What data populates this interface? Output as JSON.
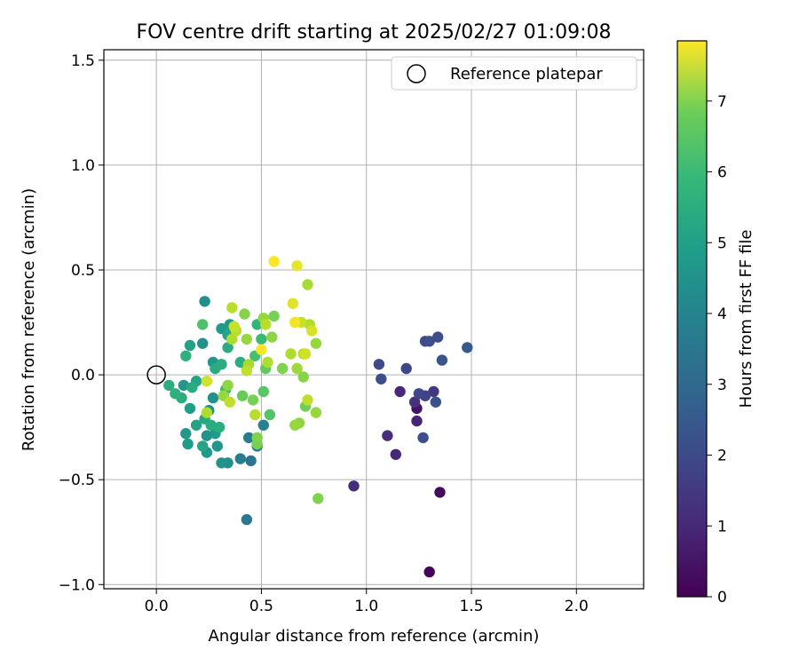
{
  "chart_data": {
    "type": "scatter",
    "title": "FOV centre drift starting at 2025/02/27 01:09:08",
    "xlabel": "Angular distance from reference (arcmin)",
    "ylabel": "Rotation from reference (arcmin)",
    "xlim": [
      -0.25,
      2.32
    ],
    "ylim": [
      -1.02,
      1.55
    ],
    "xticks": [
      "0.0",
      "0.5",
      "1.0",
      "1.5",
      "2.0"
    ],
    "yticks": [
      "−1.0",
      "−0.5",
      "0.0",
      "0.5",
      "1.0",
      "1.5"
    ],
    "grid": true,
    "legend": {
      "location": "upper right",
      "label": "Reference platepar"
    },
    "reference_point": {
      "x": 0.0,
      "y": 0.0
    },
    "colorbar": {
      "label": "Hours from first FF file",
      "colormap": "viridis",
      "range": [
        0,
        7.85
      ],
      "ticks": [
        "0",
        "1",
        "2",
        "3",
        "4",
        "5",
        "6",
        "7"
      ]
    },
    "points": [
      {
        "x": 1.3,
        "y": -0.94,
        "t": 0.1
      },
      {
        "x": 1.35,
        "y": -0.56,
        "t": 0.2
      },
      {
        "x": 1.24,
        "y": -0.16,
        "t": 0.4
      },
      {
        "x": 0.94,
        "y": -0.53,
        "t": 1.0
      },
      {
        "x": 1.14,
        "y": -0.38,
        "t": 0.9
      },
      {
        "x": 1.1,
        "y": -0.29,
        "t": 1.0
      },
      {
        "x": 1.24,
        "y": -0.22,
        "t": 0.8
      },
      {
        "x": 1.16,
        "y": -0.08,
        "t": 0.9
      },
      {
        "x": 1.23,
        "y": -0.13,
        "t": 1.1
      },
      {
        "x": 1.32,
        "y": -0.08,
        "t": 1.3
      },
      {
        "x": 1.28,
        "y": -0.1,
        "t": 1.6
      },
      {
        "x": 1.25,
        "y": -0.09,
        "t": 1.7
      },
      {
        "x": 1.27,
        "y": -0.3,
        "t": 1.9
      },
      {
        "x": 1.33,
        "y": -0.13,
        "t": 2.0
      },
      {
        "x": 1.07,
        "y": -0.02,
        "t": 1.9
      },
      {
        "x": 1.06,
        "y": 0.05,
        "t": 1.8
      },
      {
        "x": 1.19,
        "y": 0.03,
        "t": 1.7
      },
      {
        "x": 1.28,
        "y": 0.16,
        "t": 1.8
      },
      {
        "x": 1.3,
        "y": 0.16,
        "t": 1.9
      },
      {
        "x": 1.34,
        "y": 0.18,
        "t": 1.9
      },
      {
        "x": 1.36,
        "y": 0.07,
        "t": 2.1
      },
      {
        "x": 1.48,
        "y": 0.13,
        "t": 2.2
      },
      {
        "x": 0.43,
        "y": -0.69,
        "t": 3.2
      },
      {
        "x": 0.45,
        "y": -0.41,
        "t": 3.1
      },
      {
        "x": 0.4,
        "y": -0.4,
        "t": 3.4
      },
      {
        "x": 0.48,
        "y": -0.34,
        "t": 3.1
      },
      {
        "x": 0.44,
        "y": -0.3,
        "t": 3.3
      },
      {
        "x": 0.51,
        "y": -0.24,
        "t": 3.5
      },
      {
        "x": 0.31,
        "y": -0.42,
        "t": 4.0
      },
      {
        "x": 0.34,
        "y": -0.42,
        "t": 3.9
      },
      {
        "x": 0.24,
        "y": -0.37,
        "t": 4.2
      },
      {
        "x": 0.22,
        "y": -0.34,
        "t": 4.6
      },
      {
        "x": 0.29,
        "y": -0.34,
        "t": 4.1
      },
      {
        "x": 0.15,
        "y": -0.33,
        "t": 4.3
      },
      {
        "x": 0.14,
        "y": -0.28,
        "t": 4.2
      },
      {
        "x": 0.24,
        "y": -0.29,
        "t": 4.0
      },
      {
        "x": 0.28,
        "y": -0.28,
        "t": 4.3
      },
      {
        "x": 0.19,
        "y": -0.24,
        "t": 4.5
      },
      {
        "x": 0.26,
        "y": -0.24,
        "t": 4.8
      },
      {
        "x": 0.3,
        "y": -0.25,
        "t": 4.9
      },
      {
        "x": 0.23,
        "y": -0.21,
        "t": 4.7
      },
      {
        "x": 0.25,
        "y": -0.17,
        "t": 3.8
      },
      {
        "x": 0.16,
        "y": -0.16,
        "t": 4.4
      },
      {
        "x": 0.27,
        "y": -0.11,
        "t": 4.0
      },
      {
        "x": 0.12,
        "y": -0.11,
        "t": 4.9
      },
      {
        "x": 0.09,
        "y": -0.09,
        "t": 5.0
      },
      {
        "x": 0.06,
        "y": -0.05,
        "t": 4.9
      },
      {
        "x": 0.13,
        "y": -0.05,
        "t": 4.1
      },
      {
        "x": 0.17,
        "y": -0.06,
        "t": 4.8
      },
      {
        "x": 0.19,
        "y": -0.03,
        "t": 4.6
      },
      {
        "x": 0.14,
        "y": 0.09,
        "t": 5.0
      },
      {
        "x": 0.16,
        "y": 0.14,
        "t": 4.5
      },
      {
        "x": 0.22,
        "y": 0.15,
        "t": 4.0
      },
      {
        "x": 0.22,
        "y": 0.24,
        "t": 5.6
      },
      {
        "x": 0.23,
        "y": 0.35,
        "t": 3.9
      },
      {
        "x": 0.27,
        "y": 0.06,
        "t": 4.1
      },
      {
        "x": 0.28,
        "y": 0.03,
        "t": 4.8
      },
      {
        "x": 0.31,
        "y": 0.05,
        "t": 4.9
      },
      {
        "x": 0.31,
        "y": 0.22,
        "t": 4.3
      },
      {
        "x": 0.35,
        "y": 0.24,
        "t": 4.2
      },
      {
        "x": 0.34,
        "y": 0.19,
        "t": 4.6
      },
      {
        "x": 0.34,
        "y": 0.13,
        "t": 4.9
      },
      {
        "x": 0.33,
        "y": -0.07,
        "t": 5.3
      },
      {
        "x": 0.34,
        "y": -0.05,
        "t": 6.5
      },
      {
        "x": 0.32,
        "y": -0.1,
        "t": 6.6
      },
      {
        "x": 0.35,
        "y": -0.13,
        "t": 7.1
      },
      {
        "x": 0.24,
        "y": -0.18,
        "t": 6.9
      },
      {
        "x": 0.24,
        "y": -0.03,
        "t": 7.3
      },
      {
        "x": 0.4,
        "y": 0.06,
        "t": 4.9
      },
      {
        "x": 0.43,
        "y": 0.04,
        "t": 5.2
      },
      {
        "x": 0.47,
        "y": 0.09,
        "t": 5.5
      },
      {
        "x": 0.48,
        "y": 0.24,
        "t": 5.1
      },
      {
        "x": 0.5,
        "y": 0.17,
        "t": 5.3
      },
      {
        "x": 0.52,
        "y": 0.03,
        "t": 5.9
      },
      {
        "x": 0.46,
        "y": -0.12,
        "t": 6.2
      },
      {
        "x": 0.51,
        "y": -0.08,
        "t": 5.8
      },
      {
        "x": 0.54,
        "y": -0.19,
        "t": 5.7
      },
      {
        "x": 0.47,
        "y": -0.19,
        "t": 7.0
      },
      {
        "x": 0.48,
        "y": -0.3,
        "t": 6.3
      },
      {
        "x": 0.48,
        "y": -0.33,
        "t": 6.2
      },
      {
        "x": 0.41,
        "y": -0.1,
        "t": 6.0
      },
      {
        "x": 0.36,
        "y": 0.32,
        "t": 7.0
      },
      {
        "x": 0.42,
        "y": 0.29,
        "t": 6.4
      },
      {
        "x": 0.37,
        "y": 0.23,
        "t": 7.2
      },
      {
        "x": 0.38,
        "y": 0.21,
        "t": 7.0
      },
      {
        "x": 0.36,
        "y": 0.17,
        "t": 6.9
      },
      {
        "x": 0.43,
        "y": 0.17,
        "t": 6.6
      },
      {
        "x": 0.44,
        "y": 0.05,
        "t": 6.8
      },
      {
        "x": 0.43,
        "y": 0.02,
        "t": 7.1
      },
      {
        "x": 0.5,
        "y": 0.12,
        "t": 7.8
      },
      {
        "x": 0.51,
        "y": 0.27,
        "t": 6.6
      },
      {
        "x": 0.52,
        "y": 0.24,
        "t": 7.0
      },
      {
        "x": 0.53,
        "y": 0.06,
        "t": 6.9
      },
      {
        "x": 0.55,
        "y": 0.18,
        "t": 6.5
      },
      {
        "x": 0.56,
        "y": 0.54,
        "t": 7.8
      },
      {
        "x": 0.56,
        "y": 0.28,
        "t": 6.2
      },
      {
        "x": 0.6,
        "y": 0.03,
        "t": 6.3
      },
      {
        "x": 0.64,
        "y": 0.1,
        "t": 6.9
      },
      {
        "x": 0.65,
        "y": 0.34,
        "t": 7.5
      },
      {
        "x": 0.66,
        "y": 0.25,
        "t": 7.7
      },
      {
        "x": 0.67,
        "y": 0.52,
        "t": 7.6
      },
      {
        "x": 0.69,
        "y": 0.25,
        "t": 7.2
      },
      {
        "x": 0.7,
        "y": 0.1,
        "t": 7.0
      },
      {
        "x": 0.71,
        "y": 0.1,
        "t": 7.3
      },
      {
        "x": 0.72,
        "y": 0.43,
        "t": 6.8
      },
      {
        "x": 0.73,
        "y": 0.24,
        "t": 6.9
      },
      {
        "x": 0.74,
        "y": 0.21,
        "t": 7.4
      },
      {
        "x": 0.67,
        "y": 0.03,
        "t": 6.7
      },
      {
        "x": 0.7,
        "y": -0.01,
        "t": 6.4
      },
      {
        "x": 0.71,
        "y": -0.15,
        "t": 6.1
      },
      {
        "x": 0.72,
        "y": -0.12,
        "t": 7.1
      },
      {
        "x": 0.68,
        "y": -0.23,
        "t": 6.5
      },
      {
        "x": 0.66,
        "y": -0.24,
        "t": 6.6
      },
      {
        "x": 0.76,
        "y": 0.15,
        "t": 6.6
      },
      {
        "x": 0.76,
        "y": -0.18,
        "t": 6.6
      },
      {
        "x": 0.77,
        "y": -0.59,
        "t": 6.3
      }
    ]
  }
}
